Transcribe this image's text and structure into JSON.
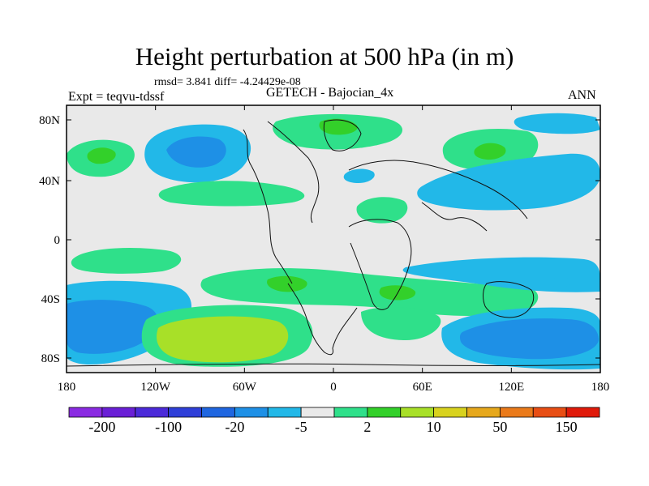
{
  "title": "Height perturbation at 500 hPa (in m)",
  "stats": "rmsd= 3.841 diff= -4.24429e-08",
  "experiment": "Expt = teqvu-tdssf",
  "model": "GETECH - Bajocian_4x",
  "season": "ANN",
  "map": {
    "lon_range": [
      -180,
      180
    ],
    "lat_range": [
      -90,
      90
    ],
    "x_ticks": [
      "180",
      "120W",
      "60W",
      "0",
      "60E",
      "120E",
      "180"
    ],
    "y_ticks": [
      "80N",
      "40N",
      "0",
      "40S",
      "80S"
    ]
  },
  "colorbar": {
    "colors": [
      "#8a2be2",
      "#6a1fd6",
      "#4b2ad9",
      "#2f3fd8",
      "#1f66e0",
      "#1e90e6",
      "#22b8e8",
      "#e9e9e9",
      "#2fe08a",
      "#33d02a",
      "#a8e028",
      "#d8d21e",
      "#e6a81c",
      "#ea7a1a",
      "#e84e14",
      "#e01a0a"
    ],
    "labels": [
      "-200",
      "-100",
      "-20",
      "-5",
      "2",
      "10",
      "50",
      "150"
    ]
  }
}
